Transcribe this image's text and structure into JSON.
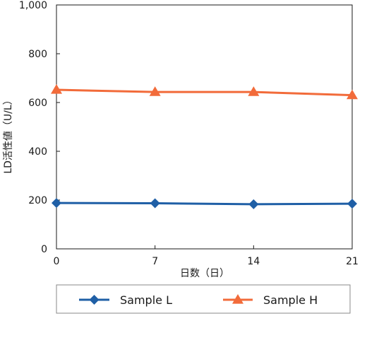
{
  "chart_data": {
    "type": "line",
    "x": [
      0,
      7,
      14,
      21
    ],
    "x_tick_labels": [
      "0",
      "7",
      "14",
      "21"
    ],
    "xlabel": "日数（日）",
    "ylabel": "LD活性値（U/L）",
    "ylim": [
      0,
      1000
    ],
    "y_ticks": [
      0,
      200,
      400,
      600,
      800,
      1000
    ],
    "y_tick_labels": [
      "0",
      "200",
      "400",
      "600",
      "800",
      "1,000"
    ],
    "grid": false,
    "legend_position": "bottom",
    "series": [
      {
        "name": "Sample L",
        "values": [
          188,
          187,
          183,
          185
        ],
        "color": "#1f5fa6",
        "marker": "diamond"
      },
      {
        "name": "Sample H",
        "values": [
          652,
          643,
          643,
          630
        ],
        "color": "#f26b3a",
        "marker": "triangle"
      }
    ]
  }
}
